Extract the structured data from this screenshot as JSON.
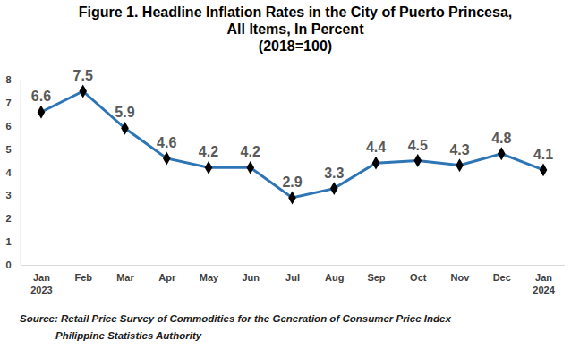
{
  "chart_data": {
    "type": "line",
    "title": "Figure 1. Headline Inflation Rates in the City of Puerto Princesa,\nAll Items, In Percent",
    "subtitle": "(2018=100)",
    "categories": [
      "Jan\n2023",
      "Feb",
      "Mar",
      "Apr",
      "May",
      "Jun",
      "Jul",
      "Aug",
      "Sep",
      "Oct",
      "Nov",
      "Dec",
      "Jan\n2024"
    ],
    "values": [
      6.6,
      7.5,
      5.9,
      4.6,
      4.2,
      4.2,
      2.9,
      3.3,
      4.4,
      4.5,
      4.3,
      4.8,
      4.1
    ],
    "color": "#2e75b6",
    "marker": "diamond",
    "data_labels": true,
    "grid": false,
    "ylim": [
      0,
      8
    ],
    "yticks": [
      0,
      1,
      2,
      3,
      4,
      5,
      6,
      7,
      8
    ],
    "annotations": [
      "Source: Retail Price Survey of Commodities for the Generation of Consumer Price Index",
      "Philippine Statistics Authority"
    ]
  }
}
